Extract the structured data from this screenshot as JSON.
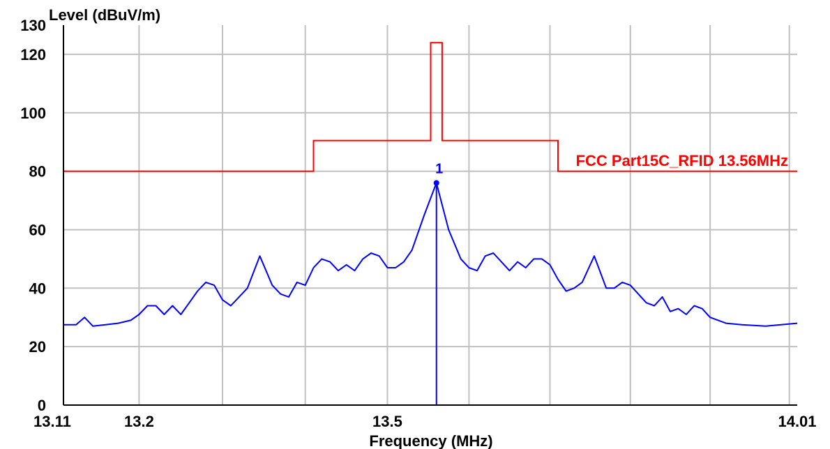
{
  "chart_data": {
    "type": "line",
    "ylabel": "Level (dBuV/m)",
    "xlabel": "Frequency (MHz)",
    "xlim": [
      13.11,
      14.01
    ],
    "ylim": [
      0,
      130
    ],
    "x_scale": "log",
    "grid": true,
    "y_tick_labels": [
      "0",
      "20",
      "40",
      "60",
      "80",
      "100",
      "120",
      "130"
    ],
    "y_tick_values": [
      0,
      20,
      40,
      60,
      80,
      100,
      120,
      130
    ],
    "x_tick_labels": [
      "13.11",
      "13.2",
      "13.5",
      "14.01"
    ],
    "x_tick_values": [
      13.11,
      13.2,
      13.5,
      14.01
    ],
    "limit_line": {
      "name": "FCC Part15C_RFID 13.56MHz",
      "color": "#ff0000",
      "points": [
        [
          13.11,
          80
        ],
        [
          13.41,
          80
        ],
        [
          13.41,
          90.5
        ],
        [
          13.553,
          90.5
        ],
        [
          13.553,
          124
        ],
        [
          13.567,
          124
        ],
        [
          13.567,
          90.5
        ],
        [
          13.71,
          90.5
        ],
        [
          13.71,
          80
        ],
        [
          14.01,
          80
        ]
      ]
    },
    "series": [
      {
        "color": "#0000ff",
        "points": [
          [
            13.11,
            27.5
          ],
          [
            13.125,
            27.5
          ],
          [
            13.135,
            30
          ],
          [
            13.145,
            27
          ],
          [
            13.16,
            27.5
          ],
          [
            13.175,
            28
          ],
          [
            13.19,
            29
          ],
          [
            13.2,
            31
          ],
          [
            13.21,
            34
          ],
          [
            13.22,
            34
          ],
          [
            13.23,
            31
          ],
          [
            13.24,
            34
          ],
          [
            13.25,
            31
          ],
          [
            13.26,
            35
          ],
          [
            13.27,
            39
          ],
          [
            13.28,
            42
          ],
          [
            13.29,
            41
          ],
          [
            13.3,
            36
          ],
          [
            13.31,
            34
          ],
          [
            13.32,
            37
          ],
          [
            13.33,
            40
          ],
          [
            13.345,
            51
          ],
          [
            13.36,
            41
          ],
          [
            13.37,
            38
          ],
          [
            13.38,
            37
          ],
          [
            13.39,
            42
          ],
          [
            13.4,
            41
          ],
          [
            13.41,
            47
          ],
          [
            13.42,
            50
          ],
          [
            13.43,
            49
          ],
          [
            13.44,
            46
          ],
          [
            13.45,
            48
          ],
          [
            13.46,
            46
          ],
          [
            13.47,
            50
          ],
          [
            13.48,
            52
          ],
          [
            13.49,
            51
          ],
          [
            13.5,
            47
          ],
          [
            13.51,
            47
          ],
          [
            13.52,
            49
          ],
          [
            13.53,
            53
          ],
          [
            13.545,
            65
          ],
          [
            13.56,
            76
          ],
          [
            13.575,
            60
          ],
          [
            13.59,
            50
          ],
          [
            13.6,
            47
          ],
          [
            13.61,
            46
          ],
          [
            13.62,
            51
          ],
          [
            13.63,
            52
          ],
          [
            13.64,
            49
          ],
          [
            13.65,
            46
          ],
          [
            13.66,
            49
          ],
          [
            13.67,
            47
          ],
          [
            13.68,
            50
          ],
          [
            13.69,
            50
          ],
          [
            13.7,
            48
          ],
          [
            13.71,
            43
          ],
          [
            13.72,
            39
          ],
          [
            13.73,
            40
          ],
          [
            13.74,
            42
          ],
          [
            13.755,
            51
          ],
          [
            13.77,
            40
          ],
          [
            13.78,
            40
          ],
          [
            13.79,
            42
          ],
          [
            13.8,
            41
          ],
          [
            13.81,
            38
          ],
          [
            13.82,
            35
          ],
          [
            13.83,
            34
          ],
          [
            13.84,
            37
          ],
          [
            13.85,
            32
          ],
          [
            13.86,
            33
          ],
          [
            13.87,
            31
          ],
          [
            13.88,
            34
          ],
          [
            13.89,
            33
          ],
          [
            13.9,
            30
          ],
          [
            13.92,
            28
          ],
          [
            13.94,
            27.5
          ],
          [
            13.97,
            27
          ],
          [
            14.01,
            28
          ]
        ]
      }
    ],
    "marker": {
      "label": "1",
      "x": 13.56,
      "y": 76,
      "color": "#0000ff"
    }
  }
}
